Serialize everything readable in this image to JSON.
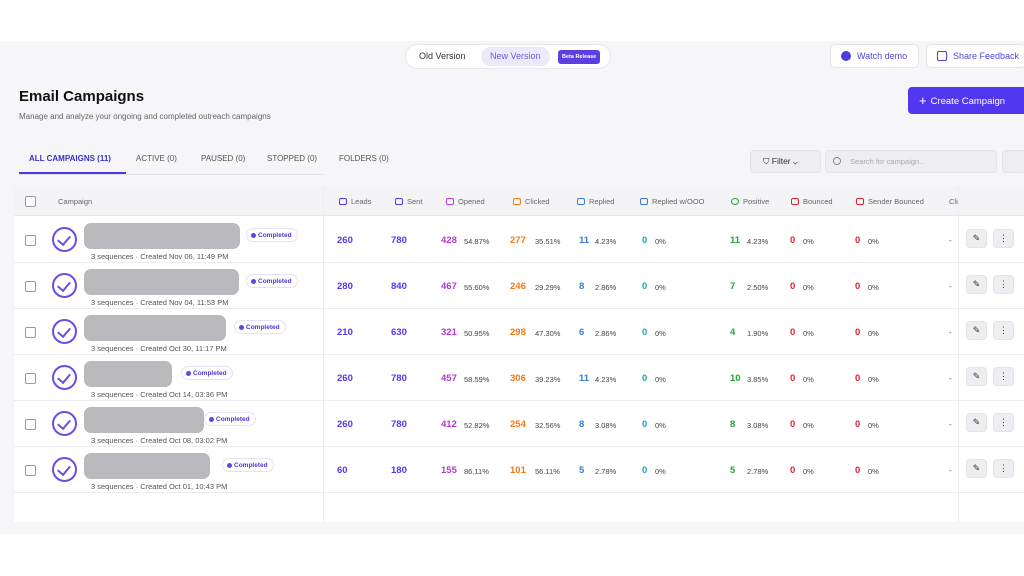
{
  "topbar": {
    "old_version": "Old Version",
    "new_version": "New Version",
    "beta": "Beta Release",
    "watch_demo": "Watch demo",
    "share_feedback": "Share Feedback"
  },
  "header": {
    "title": "Email Campaigns",
    "subtitle": "Manage and analyze your ongoing and completed outreach campaigns",
    "create_button": "Create Campaign"
  },
  "tabs": [
    "ALL CAMPAIGNS (11)",
    "ACTIVE (0)",
    "PAUSED (0)",
    "STOPPED (0)",
    "FOLDERS (0)"
  ],
  "toolbar": {
    "filter": "Filter",
    "search_placeholder": "Search for campaign..."
  },
  "columns": [
    "Campaign",
    "Leads",
    "Sent",
    "Opened",
    "Clicked",
    "Replied",
    "Replied w/OOO",
    "Positive",
    "Bounced",
    "Sender Bounced",
    "Cli"
  ],
  "colors": {
    "accent": "#5138f0",
    "opened": "#b23ad6",
    "clicked": "#f07a1a",
    "replied": "#3a7bd5",
    "ooo": "#1aa6b0",
    "positive": "#22a63a",
    "bounced": "#e0202a"
  },
  "rows": [
    {
      "status": "Completed",
      "meta": "3 sequences · Created Nov 06, 11:49 PM",
      "leads": "260",
      "sent": "780",
      "opened": "428",
      "opened_pct": "54.87%",
      "clicked": "277",
      "clicked_pct": "35.51%",
      "replied": "11",
      "replied_pct": "4.23%",
      "ooo": "0",
      "ooo_pct": "0%",
      "positive": "11",
      "positive_pct": "4.23%",
      "bounced": "0",
      "bounced_pct": "0%",
      "sender_bounced": "0",
      "sender_bounced_pct": "0%",
      "last": "-"
    },
    {
      "status": "Completed",
      "meta": "3 sequences · Created Nov 04, 11:53 PM",
      "leads": "280",
      "sent": "840",
      "opened": "467",
      "opened_pct": "55.60%",
      "clicked": "246",
      "clicked_pct": "29.29%",
      "replied": "8",
      "replied_pct": "2.86%",
      "ooo": "0",
      "ooo_pct": "0%",
      "positive": "7",
      "positive_pct": "2.50%",
      "bounced": "0",
      "bounced_pct": "0%",
      "sender_bounced": "0",
      "sender_bounced_pct": "0%",
      "last": "-"
    },
    {
      "status": "Completed",
      "meta": "3 sequences · Created Oct 30, 11:17 PM",
      "leads": "210",
      "sent": "630",
      "opened": "321",
      "opened_pct": "50.95%",
      "clicked": "298",
      "clicked_pct": "47.30%",
      "replied": "6",
      "replied_pct": "2.86%",
      "ooo": "0",
      "ooo_pct": "0%",
      "positive": "4",
      "positive_pct": "1.90%",
      "bounced": "0",
      "bounced_pct": "0%",
      "sender_bounced": "0",
      "sender_bounced_pct": "0%",
      "last": "-"
    },
    {
      "status": "Completed",
      "meta": "3 sequences · Created Oct 14, 03:36 PM",
      "leads": "260",
      "sent": "780",
      "opened": "457",
      "opened_pct": "58.59%",
      "clicked": "306",
      "clicked_pct": "39.23%",
      "replied": "11",
      "replied_pct": "4.23%",
      "ooo": "0",
      "ooo_pct": "0%",
      "positive": "10",
      "positive_pct": "3.85%",
      "bounced": "0",
      "bounced_pct": "0%",
      "sender_bounced": "0",
      "sender_bounced_pct": "0%",
      "last": "-"
    },
    {
      "status": "Completed",
      "meta": "3 sequences · Created Oct 08, 03:02 PM",
      "leads": "260",
      "sent": "780",
      "opened": "412",
      "opened_pct": "52.82%",
      "clicked": "254",
      "clicked_pct": "32.56%",
      "replied": "8",
      "replied_pct": "3.08%",
      "ooo": "0",
      "ooo_pct": "0%",
      "positive": "8",
      "positive_pct": "3.08%",
      "bounced": "0",
      "bounced_pct": "0%",
      "sender_bounced": "0",
      "sender_bounced_pct": "0%",
      "last": "-"
    },
    {
      "status": "Completed",
      "meta": "3 sequences · Created Oct 01, 10:43 PM",
      "leads": "60",
      "sent": "180",
      "opened": "155",
      "opened_pct": "86.11%",
      "clicked": "101",
      "clicked_pct": "56.11%",
      "replied": "5",
      "replied_pct": "2.78%",
      "ooo": "0",
      "ooo_pct": "0%",
      "positive": "5",
      "positive_pct": "2.78%",
      "bounced": "0",
      "bounced_pct": "0%",
      "sender_bounced": "0",
      "sender_bounced_pct": "0%",
      "last": "-"
    }
  ],
  "actions": {
    "edit_glyph": "✎",
    "more_glyph": "⋮",
    "fab_glyph": "✱"
  }
}
